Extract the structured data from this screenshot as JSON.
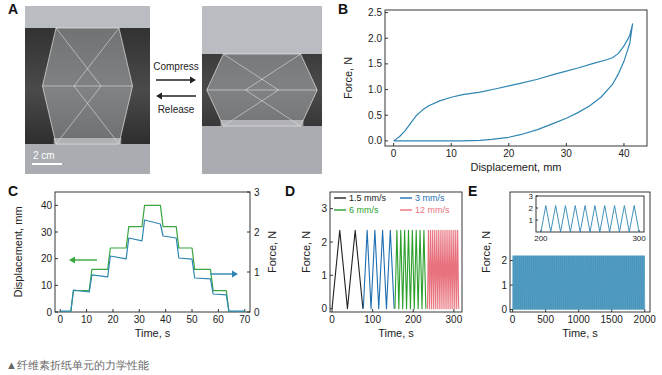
{
  "chart_data": [
    {
      "type": "line",
      "title": "B",
      "x_label": "Displacement, mm",
      "y_label": "Force, N",
      "color": "#2f86b3",
      "x": [
        0,
        1,
        2,
        3,
        4,
        5,
        6,
        8,
        10,
        12,
        15,
        18,
        20,
        22,
        25,
        28,
        30,
        32,
        35,
        37,
        38,
        39,
        40,
        41,
        41.5,
        41,
        40,
        39,
        38,
        36,
        34,
        32,
        30,
        28,
        25,
        22,
        20,
        17,
        15,
        12,
        10,
        5,
        0
      ],
      "values": [
        0,
        0.08,
        0.2,
        0.35,
        0.5,
        0.6,
        0.68,
        0.78,
        0.85,
        0.9,
        0.95,
        1.02,
        1.07,
        1.12,
        1.2,
        1.3,
        1.36,
        1.42,
        1.52,
        1.58,
        1.62,
        1.7,
        1.85,
        2.05,
        2.28,
        1.9,
        1.55,
        1.3,
        1.1,
        0.85,
        0.68,
        0.55,
        0.44,
        0.35,
        0.22,
        0.12,
        0.07,
        0.03,
        0.01,
        0,
        0,
        0,
        0
      ],
      "xlim": [
        -1.5,
        44
      ],
      "ylim": [
        -0.1,
        2.55
      ],
      "xticks": [
        0,
        10,
        20,
        30,
        40
      ],
      "yticks": [
        {
          "value": 0,
          "label": "0.0"
        },
        {
          "value": 0.5,
          "label": "0.5"
        },
        {
          "value": 1,
          "label": "1.0"
        },
        {
          "value": 1.5,
          "label": "1.5"
        },
        {
          "value": 2,
          "label": "2.0"
        },
        {
          "value": 2.5,
          "label": "2.5"
        }
      ]
    },
    {
      "type": "line",
      "title": "C",
      "x_label": "Time, s",
      "y_label": "Displacement, mm",
      "y2_label": "Force, N",
      "x": [
        0,
        4,
        5,
        11,
        12,
        18,
        19,
        25,
        26,
        31,
        32,
        38,
        39,
        44,
        45,
        50,
        51,
        57,
        58,
        63,
        64,
        70
      ],
      "series": [
        {
          "color": "#3aa63f",
          "values": [
            0,
            0,
            8,
            8,
            16,
            16,
            24,
            24,
            32,
            32,
            40,
            40,
            32,
            32,
            24,
            24,
            16,
            16,
            8,
            8,
            0,
            0
          ]
        },
        {
          "color": "#2f86b3",
          "axis": "y2",
          "values": [
            0.02,
            0.02,
            0.55,
            0.5,
            0.93,
            0.88,
            1.4,
            1.33,
            1.85,
            1.78,
            2.3,
            2.2,
            1.9,
            1.85,
            1.35,
            1.32,
            0.85,
            0.83,
            0.45,
            0.43,
            0.02,
            0.02
          ]
        }
      ],
      "xlim": [
        -2,
        72
      ],
      "ylim": [
        0,
        45
      ],
      "y2lim": [
        0,
        3
      ],
      "xticks": [
        0,
        10,
        20,
        30,
        40,
        50,
        60,
        70
      ],
      "yticks": [
        0,
        10,
        20,
        30,
        40
      ],
      "y2ticks": [
        0,
        1,
        2,
        3
      ]
    },
    {
      "type": "line",
      "title": "D",
      "x_label": "Time, s",
      "y_label": "Force, N",
      "legend": "top",
      "series": [
        {
          "name": "1.5 mm/s",
          "color": "#222222",
          "x": [
            0,
            19,
            38,
            57,
            76
          ],
          "values": [
            0,
            2.35,
            0,
            2.35,
            0
          ]
        },
        {
          "name": "3 mm/s",
          "color": "#1f6fb2",
          "x": [
            77,
            86.5,
            96,
            105.5,
            115,
            124.5,
            134,
            143.5,
            153
          ],
          "values": [
            0,
            2.35,
            0,
            2.35,
            0,
            2.35,
            0,
            2.35,
            0
          ]
        },
        {
          "name": "6 mm/s",
          "color": "#2ca02c",
          "x": [
            155,
            159.75,
            164.5,
            169.25,
            174,
            178.75,
            183.5,
            188.25,
            193,
            197.75,
            202.5,
            207.25,
            212,
            216.75,
            221.5,
            226.25,
            231
          ],
          "values": [
            0,
            2.35,
            0,
            2.35,
            0,
            2.35,
            0,
            2.35,
            0,
            2.35,
            0,
            2.35,
            0,
            2.35,
            0,
            2.35,
            0
          ]
        },
        {
          "name": "12 mm/s",
          "color": "#e8737f",
          "x": [
            235,
            237.4,
            239.8,
            242.2,
            244.6,
            247,
            249.4,
            251.8,
            254.2,
            256.6,
            259,
            261.4,
            263.8,
            266.2,
            268.6,
            271,
            273.4,
            275.8,
            278.2,
            280.6,
            283,
            285.4,
            287.8,
            290.2,
            292.6,
            295,
            297.4,
            299.8,
            302.2,
            304.6,
            307,
            309.4,
            311.8
          ],
          "values": [
            0,
            2.35,
            0,
            2.35,
            0,
            2.35,
            0,
            2.35,
            0,
            2.35,
            0,
            2.35,
            0,
            2.35,
            0,
            2.35,
            0,
            2.35,
            0,
            2.35,
            0,
            2.35,
            0,
            2.35,
            0,
            2.35,
            0,
            2.35,
            0,
            2.35,
            0,
            2.35,
            0
          ]
        }
      ],
      "xlim": [
        -5,
        320
      ],
      "ylim": [
        -0.1,
        3.5
      ],
      "xticks": [
        0,
        100,
        200,
        300
      ],
      "yticks": [
        0,
        1,
        2,
        3
      ]
    },
    {
      "type": "line",
      "title": "E",
      "x_label": "Time, s",
      "y_label": "Force, N",
      "color": "#2f86b3",
      "x": [
        0,
        5,
        10,
        15,
        20,
        25,
        30,
        35,
        40,
        45,
        50,
        55,
        60,
        65,
        70,
        75,
        80,
        85,
        90,
        95,
        100,
        105,
        110,
        115,
        120,
        125,
        130,
        135,
        140,
        145,
        150,
        155,
        160,
        165,
        170,
        175,
        180,
        185,
        190,
        195,
        200,
        205,
        210,
        215,
        220,
        225,
        230,
        235,
        240,
        245,
        250,
        255,
        260,
        265,
        270,
        275,
        280,
        285,
        290,
        295,
        300,
        305,
        310,
        315,
        320,
        325,
        330,
        335,
        340,
        345,
        350,
        355,
        360,
        365,
        370,
        375,
        380,
        385,
        390,
        395,
        400,
        405,
        410,
        415,
        420,
        425,
        430,
        435,
        440,
        445,
        450,
        455,
        460,
        465,
        470,
        475,
        480,
        485,
        490,
        495,
        500,
        505,
        510,
        515,
        520,
        525,
        530,
        535,
        540,
        545,
        550,
        555,
        560,
        565,
        570,
        575,
        580,
        585,
        590,
        595,
        600,
        605,
        610,
        615,
        620,
        625,
        630,
        635,
        640,
        645,
        650,
        655,
        660,
        665,
        670,
        675,
        680,
        685,
        690,
        695,
        700,
        705,
        710,
        715,
        720,
        725,
        730,
        735,
        740,
        745,
        750,
        755,
        760,
        765,
        770,
        775,
        780,
        785,
        790,
        795,
        800,
        805,
        810,
        815,
        820,
        825,
        830,
        835,
        840,
        845,
        850,
        855,
        860,
        865,
        870,
        875,
        880,
        885,
        890,
        895,
        900,
        905,
        910,
        915,
        920,
        925,
        930,
        935,
        940,
        945,
        950,
        955,
        960,
        965,
        970,
        975,
        980,
        985,
        990,
        995,
        1000,
        1005,
        1010,
        1015,
        1020,
        1025,
        1030,
        1035,
        1040,
        1045,
        1050,
        1055,
        1060,
        1065,
        1070,
        1075,
        1080,
        1085,
        1090,
        1095,
        1100,
        1105,
        1110,
        1115,
        1120,
        1125,
        1130,
        1135,
        1140,
        1145,
        1150,
        1155,
        1160,
        1165,
        1170,
        1175,
        1180,
        1185,
        1190,
        1195,
        1200,
        1205,
        1210,
        1215,
        1220,
        1225,
        1230,
        1235,
        1240,
        1245,
        1250,
        1255,
        1260,
        1265,
        1270,
        1275,
        1280,
        1285,
        1290,
        1295,
        1300,
        1305,
        1310,
        1315,
        1320,
        1325,
        1330,
        1335,
        1340,
        1345,
        1350,
        1355,
        1360,
        1365,
        1370,
        1375,
        1380,
        1385,
        1390,
        1395,
        1400,
        1405,
        1410,
        1415,
        1420,
        1425,
        1430,
        1435,
        1440,
        1445,
        1450,
        1455,
        1460,
        1465,
        1470,
        1475,
        1480,
        1485,
        1490,
        1495,
        1500,
        1505,
        1510,
        1515,
        1520,
        1525,
        1530,
        1535,
        1540,
        1545,
        1550,
        1555,
        1560,
        1565,
        1570,
        1575,
        1580,
        1585,
        1590,
        1595,
        1600,
        1605,
        1610,
        1615,
        1620,
        1625,
        1630,
        1635,
        1640,
        1645,
        1650,
        1655,
        1660,
        1665,
        1670,
        1675,
        1680,
        1685,
        1690,
        1695,
        1700,
        1705,
        1710,
        1715,
        1720,
        1725,
        1730,
        1735,
        1740,
        1745,
        1750,
        1755,
        1760,
        1765,
        1770,
        1775,
        1780,
        1785,
        1790,
        1795,
        1800,
        1805,
        1810,
        1815,
        1820,
        1825,
        1830,
        1835,
        1840,
        1845,
        1850,
        1855,
        1860,
        1865,
        1870,
        1875,
        1880,
        1885,
        1890,
        1895,
        1900,
        1905,
        1910,
        1915,
        1920,
        1925,
        1930,
        1935,
        1940,
        1945,
        1950,
        1955,
        1960,
        1965,
        1970,
        1975,
        1980,
        1985,
        1990,
        1995,
        2000
      ],
      "values": [
        0,
        2.2,
        0,
        2.2,
        0,
        2.2,
        0,
        2.2,
        0,
        2.2,
        0,
        2.2,
        0,
        2.2,
        0,
        2.2,
        0,
        2.2,
        0,
        2.2,
        0,
        2.2,
        0,
        2.2,
        0,
        2.2,
        0,
        2.2,
        0,
        2.2,
        0,
        2.2,
        0,
        2.2,
        0,
        2.2,
        0,
        2.2,
        0,
        2.2,
        0,
        2.2,
        0,
        2.2,
        0,
        2.2,
        0,
        2.2,
        0,
        2.2,
        0,
        2.2,
        0,
        2.2,
        0,
        2.2,
        0,
        2.2,
        0,
        2.2,
        0,
        2.2,
        0,
        2.2,
        0,
        2.2,
        0,
        2.2,
        0,
        2.2,
        0,
        2.2,
        0,
        2.2,
        0,
        2.2,
        0,
        2.2,
        0,
        2.2,
        0,
        2.2,
        0,
        2.2,
        0,
        2.2,
        0,
        2.2,
        0,
        2.2,
        0,
        2.2,
        0,
        2.2,
        0,
        2.2,
        0,
        2.2,
        0,
        2.2,
        0,
        2.2,
        0,
        2.2,
        0,
        2.2,
        0,
        2.2,
        0,
        2.2,
        0,
        2.2,
        0,
        2.2,
        0,
        2.2,
        0,
        2.2,
        0,
        2.2,
        0,
        2.2,
        0,
        2.2,
        0,
        2.2,
        0,
        2.2,
        0,
        2.2,
        0,
        2.2,
        0,
        2.2,
        0,
        2.2,
        0,
        2.2,
        0,
        2.2,
        0,
        2.2,
        0,
        2.2,
        0,
        2.2,
        0,
        2.2,
        0,
        2.2,
        0,
        2.2,
        0,
        2.2,
        0,
        2.2,
        0,
        2.2,
        0,
        2.2,
        0,
        2.2,
        0,
        2.2,
        0,
        2.2,
        0,
        2.2,
        0,
        2.2,
        0,
        2.2,
        0,
        2.2,
        0,
        2.2,
        0,
        2.2,
        0,
        2.2,
        0,
        2.2,
        0,
        2.2,
        0,
        2.2,
        0,
        2.2,
        0,
        2.2,
        0,
        2.2,
        0,
        2.2,
        0,
        2.2,
        0,
        2.2,
        0,
        2.2,
        0,
        2.2,
        0,
        2.2,
        0,
        2.2,
        0,
        2.2,
        0,
        2.2,
        0,
        2.2,
        0,
        2.2,
        0,
        2.2,
        0,
        2.2,
        0,
        2.2,
        0,
        2.2,
        0,
        2.2,
        0,
        2.2,
        0,
        2.2,
        0,
        2.2,
        0,
        2.2,
        0,
        2.2,
        0,
        2.2,
        0,
        2.2,
        0,
        2.2,
        0,
        2.2,
        0,
        2.2,
        0,
        2.2,
        0,
        2.2,
        0,
        2.2,
        0,
        2.2,
        0,
        2.2,
        0,
        2.2,
        0,
        2.2,
        0,
        2.2,
        0,
        2.2,
        0,
        2.2,
        0,
        2.2,
        0,
        2.2,
        0,
        2.2,
        0,
        2.2,
        0,
        2.2,
        0,
        2.2,
        0,
        2.2,
        0,
        2.2,
        0,
        2.2,
        0,
        2.2,
        0,
        2.2,
        0,
        2.2,
        0,
        2.2,
        0,
        2.2,
        0,
        2.2,
        0,
        2.2,
        0,
        2.2,
        0,
        2.2,
        0,
        2.2,
        0,
        2.2,
        0,
        2.2,
        0,
        2.2,
        0,
        2.2,
        0,
        2.2,
        0,
        2.2,
        0,
        2.2,
        0,
        2.2,
        0,
        2.2,
        0,
        2.2,
        0,
        2.2,
        0,
        2.2,
        0,
        2.2,
        0,
        2.2,
        0,
        2.2,
        0,
        2.2,
        0,
        2.2,
        0,
        2.2,
        0,
        2.2,
        0,
        2.2,
        0,
        2.2,
        0,
        2.2,
        0,
        2.2,
        0,
        2.2,
        0,
        2.2,
        0,
        2.2,
        0,
        2.2,
        0,
        2.2,
        0,
        2.2,
        0,
        2.2,
        0,
        2.2,
        0,
        2.2,
        0,
        2.2,
        0,
        2.2,
        0,
        2.2,
        0,
        2.2,
        0,
        2.2,
        0,
        2.2,
        0,
        2.2,
        0,
        2.2,
        0,
        2.2,
        0,
        2.2,
        0,
        2.2,
        0,
        2.2,
        0,
        2.2,
        0,
        2.2,
        0,
        2.2,
        0,
        2.2,
        0,
        2.2,
        0
      ],
      "xlim": [
        -40,
        2080
      ],
      "ylim": [
        -0.1,
        4.8
      ],
      "xticks": [
        0,
        500,
        1000,
        1500,
        2000
      ],
      "yticks": [
        0,
        1,
        2
      ]
    },
    {
      "type": "line",
      "color": "#2f86b3",
      "x": [
        200,
        205,
        210,
        215,
        220,
        225,
        230,
        235,
        240,
        245,
        250,
        255,
        260,
        265,
        270,
        275,
        280,
        285,
        290,
        295,
        300
      ],
      "values": [
        0,
        2.2,
        0,
        2.2,
        0,
        2.2,
        0,
        2.2,
        0,
        2.2,
        0,
        2.2,
        0,
        2.2,
        0,
        2.2,
        0,
        2.2,
        0,
        2.2,
        0
      ],
      "xlim": [
        195,
        305
      ],
      "ylim": [
        0,
        3
      ],
      "xticks": [
        200,
        300
      ],
      "yticks": [
        1,
        2,
        3
      ]
    }
  ],
  "figure": {
    "panel_a": {
      "label": "A",
      "compress": "Compress",
      "release": "Release",
      "scale_bar": "2 cm"
    },
    "caption": "▲纤维素折纸单元的力学性能"
  }
}
